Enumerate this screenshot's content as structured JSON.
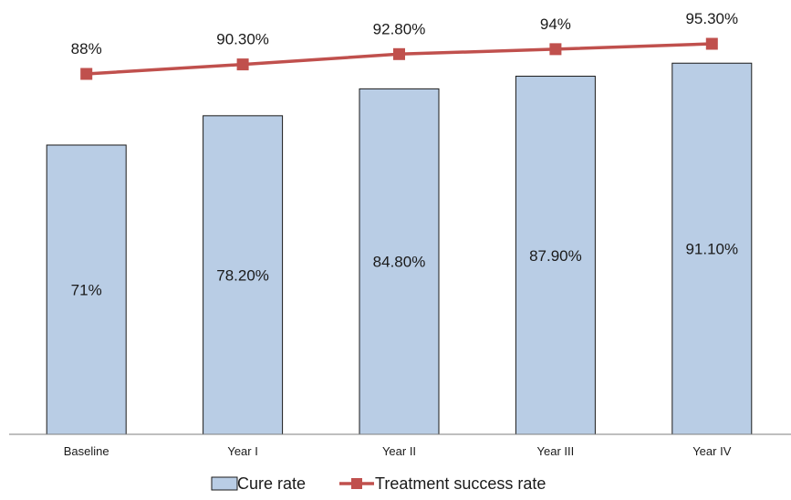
{
  "chart_data": {
    "type": "bar",
    "categories": [
      "Baseline",
      "Year I",
      "Year II",
      "Year III",
      "Year IV"
    ],
    "series": [
      {
        "name": "Cure rate",
        "type": "bar",
        "values": [
          71,
          78.2,
          84.8,
          87.9,
          91.1
        ],
        "labels": [
          "71%",
          "78.20%",
          "84.80%",
          "87.90%",
          "91.10%"
        ],
        "color": "#b9cde5",
        "border": "#1a1a1a"
      },
      {
        "name": "Treatment success rate",
        "type": "line",
        "values": [
          88,
          90.3,
          92.8,
          94,
          95.3
        ],
        "labels": [
          "88%",
          "90.30%",
          "92.80%",
          "94%",
          "95.30%"
        ],
        "color": "#c0504d"
      }
    ],
    "ylim_bars": [
      0,
      100
    ],
    "ylim_line": [
      0,
      100
    ],
    "grid": false,
    "legend_position": "bottom"
  }
}
